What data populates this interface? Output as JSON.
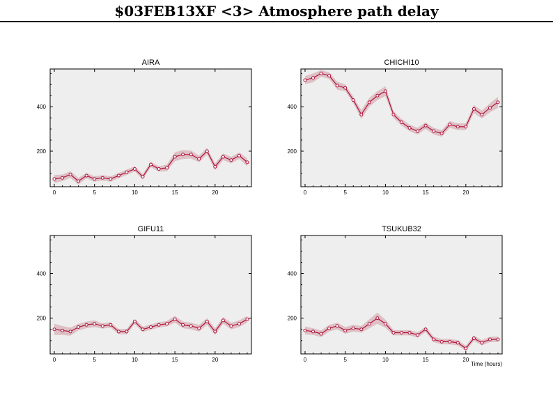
{
  "title": "$03FEB13XF <3>  Atmosphere path delay",
  "colors": {
    "line": "#b0103a",
    "band": "#d9b8bd",
    "plot_bg": "#eeeeee",
    "marker_fill": "#ffffff"
  },
  "chart_data": [
    {
      "type": "line",
      "title": "AIRA",
      "xlabel": "",
      "xlim": [
        0,
        24
      ],
      "ylim": [
        40,
        570
      ],
      "xticks": [
        0,
        5,
        10,
        15,
        20
      ],
      "yticks": [
        200,
        400
      ],
      "x": [
        0,
        1,
        2,
        3,
        4,
        5,
        6,
        7,
        8,
        9,
        10,
        11,
        12,
        13,
        14,
        15,
        16,
        17,
        18,
        19,
        20,
        21,
        22,
        23,
        24
      ],
      "series": [
        {
          "values": [
            75,
            80,
            95,
            65,
            90,
            75,
            80,
            75,
            90,
            105,
            120,
            85,
            140,
            120,
            125,
            175,
            185,
            185,
            165,
            200,
            130,
            175,
            160,
            180,
            150
          ],
          "band": [
            18,
            15,
            15,
            15,
            12,
            12,
            12,
            12,
            12,
            12,
            12,
            12,
            12,
            12,
            15,
            20,
            20,
            18,
            15,
            15,
            15,
            15,
            15,
            15,
            18
          ]
        }
      ]
    },
    {
      "type": "line",
      "title": "CHICHI10",
      "xlabel": "",
      "xlim": [
        0,
        24
      ],
      "ylim": [
        40,
        570
      ],
      "xticks": [
        0,
        5,
        10,
        15,
        20
      ],
      "yticks": [
        200,
        400
      ],
      "x": [
        0,
        1,
        2,
        3,
        4,
        5,
        6,
        7,
        8,
        9,
        10,
        11,
        12,
        13,
        14,
        15,
        16,
        17,
        18,
        19,
        20,
        21,
        22,
        23,
        24
      ],
      "series": [
        {
          "values": [
            520,
            530,
            550,
            540,
            495,
            485,
            430,
            365,
            420,
            450,
            470,
            365,
            330,
            305,
            290,
            315,
            290,
            280,
            320,
            310,
            310,
            390,
            365,
            395,
            420
          ],
          "band": [
            18,
            20,
            15,
            15,
            18,
            15,
            15,
            20,
            20,
            20,
            22,
            15,
            15,
            15,
            15,
            15,
            15,
            15,
            15,
            15,
            15,
            18,
            18,
            20,
            25
          ]
        }
      ]
    },
    {
      "type": "line",
      "title": "GIFU11",
      "xlabel": "",
      "xlim": [
        0,
        24
      ],
      "ylim": [
        40,
        570
      ],
      "xticks": [
        0,
        5,
        10,
        15,
        20
      ],
      "yticks": [
        200,
        400
      ],
      "x": [
        0,
        1,
        2,
        3,
        4,
        5,
        6,
        7,
        8,
        9,
        10,
        11,
        12,
        13,
        14,
        15,
        16,
        17,
        18,
        19,
        20,
        21,
        22,
        23,
        24
      ],
      "series": [
        {
          "values": [
            150,
            145,
            140,
            160,
            170,
            175,
            165,
            170,
            140,
            140,
            185,
            150,
            160,
            170,
            175,
            195,
            170,
            165,
            155,
            185,
            140,
            190,
            165,
            175,
            195
          ],
          "band": [
            25,
            20,
            18,
            15,
            15,
            15,
            12,
            12,
            12,
            12,
            12,
            12,
            12,
            12,
            12,
            15,
            15,
            15,
            15,
            15,
            15,
            15,
            15,
            15,
            15
          ]
        }
      ]
    },
    {
      "type": "line",
      "title": "TSUKUB32",
      "xlabel": "Time (hours)",
      "xlim": [
        0,
        24
      ],
      "ylim": [
        40,
        570
      ],
      "xticks": [
        0,
        5,
        10,
        15,
        20
      ],
      "yticks": [
        200,
        400
      ],
      "x": [
        0,
        1,
        2,
        3,
        4,
        5,
        6,
        7,
        8,
        9,
        10,
        11,
        12,
        13,
        14,
        15,
        16,
        17,
        18,
        19,
        20,
        21,
        22,
        23,
        24
      ],
      "series": [
        {
          "values": [
            145,
            140,
            130,
            155,
            165,
            145,
            155,
            150,
            175,
            200,
            175,
            135,
            135,
            135,
            125,
            150,
            105,
            95,
            95,
            90,
            65,
            110,
            90,
            105,
            105
          ],
          "band": [
            18,
            15,
            15,
            15,
            15,
            15,
            15,
            15,
            20,
            25,
            18,
            12,
            12,
            12,
            12,
            12,
            12,
            12,
            12,
            12,
            12,
            12,
            12,
            12,
            12
          ]
        }
      ]
    }
  ]
}
